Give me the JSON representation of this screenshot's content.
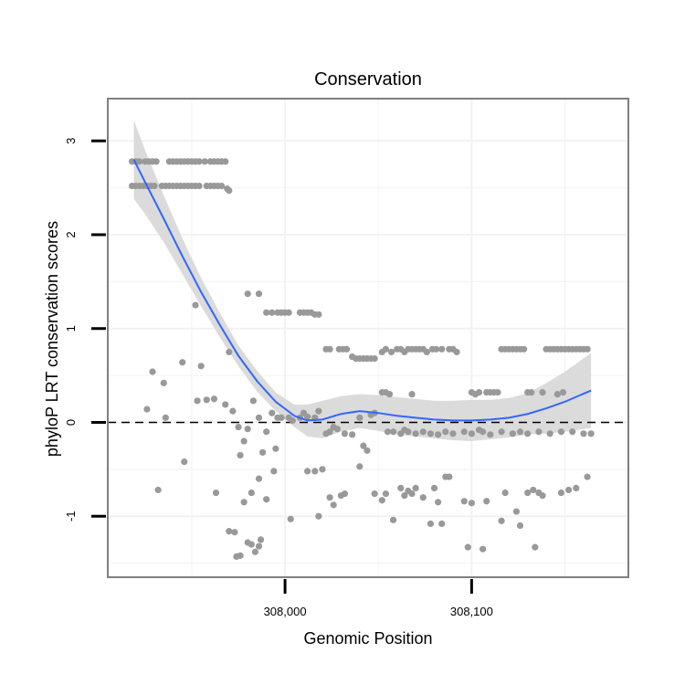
{
  "chart_data": {
    "type": "scatter",
    "title": "Conservation",
    "xlabel": "Genomic Position",
    "ylabel": "phyloP LRT conservation scores",
    "xlim": [
      307905,
      308184
    ],
    "ylim": [
      -1.65,
      3.45
    ],
    "xticks": [
      308000,
      308100
    ],
    "xtick_labels": [
      "308,000",
      "308,100"
    ],
    "yticks": [
      -1,
      0,
      1,
      2,
      3
    ],
    "ytick_labels": [
      "-1",
      "0",
      "1",
      "2",
      "3"
    ],
    "grid": true,
    "reference_line": {
      "y": 0,
      "style": "dashed"
    },
    "colors": {
      "points": "#999999",
      "smooth_line": "#3366ff",
      "confidence_band": "#d9d9d9",
      "panel_border": "#7f7f7f",
      "grid": "#f2f2f2"
    },
    "series": [
      {
        "type": "scatter",
        "points": [
          [
            307918,
            2.78
          ],
          [
            307920,
            2.78
          ],
          [
            307922,
            2.78
          ],
          [
            307925,
            2.78
          ],
          [
            307927,
            2.78
          ],
          [
            307929,
            2.78
          ],
          [
            307931,
            2.78
          ],
          [
            307938,
            2.78
          ],
          [
            307940,
            2.78
          ],
          [
            307942,
            2.78
          ],
          [
            307944,
            2.78
          ],
          [
            307946,
            2.78
          ],
          [
            307948,
            2.78
          ],
          [
            307950,
            2.78
          ],
          [
            307952,
            2.78
          ],
          [
            307954,
            2.78
          ],
          [
            307957,
            2.78
          ],
          [
            307960,
            2.78
          ],
          [
            307962,
            2.78
          ],
          [
            307964,
            2.78
          ],
          [
            307966,
            2.78
          ],
          [
            307968,
            2.78
          ],
          [
            307918,
            2.52
          ],
          [
            307920,
            2.52
          ],
          [
            307922,
            2.52
          ],
          [
            307924,
            2.52
          ],
          [
            307926,
            2.52
          ],
          [
            307928,
            2.52
          ],
          [
            307930,
            2.52
          ],
          [
            307934,
            2.52
          ],
          [
            307936,
            2.52
          ],
          [
            307938,
            2.52
          ],
          [
            307940,
            2.52
          ],
          [
            307942,
            2.52
          ],
          [
            307944,
            2.52
          ],
          [
            307946,
            2.52
          ],
          [
            307948,
            2.52
          ],
          [
            307950,
            2.52
          ],
          [
            307952,
            2.52
          ],
          [
            307954,
            2.52
          ],
          [
            307958,
            2.52
          ],
          [
            307960,
            2.52
          ],
          [
            307962,
            2.52
          ],
          [
            307964,
            2.52
          ],
          [
            307966,
            2.52
          ],
          [
            307969,
            2.49
          ],
          [
            307970,
            2.47
          ],
          [
            307980,
            1.37
          ],
          [
            307986,
            1.37
          ],
          [
            307990,
            1.17
          ],
          [
            307993,
            1.17
          ],
          [
            307996,
            1.17
          ],
          [
            307998,
            1.17
          ],
          [
            308000,
            1.17
          ],
          [
            308002,
            1.17
          ],
          [
            308008,
            1.17
          ],
          [
            308010,
            1.17
          ],
          [
            308012,
            1.17
          ],
          [
            308014,
            1.17
          ],
          [
            308016,
            1.15
          ],
          [
            308018,
            1.15
          ],
          [
            308022,
            0.78
          ],
          [
            308024,
            0.78
          ],
          [
            308029,
            0.78
          ],
          [
            308031,
            0.78
          ],
          [
            308033,
            0.78
          ],
          [
            308036,
            0.7
          ],
          [
            308038,
            0.68
          ],
          [
            308040,
            0.68
          ],
          [
            308042,
            0.68
          ],
          [
            308044,
            0.68
          ],
          [
            308046,
            0.68
          ],
          [
            308048,
            0.68
          ],
          [
            308052,
            0.75
          ],
          [
            308054,
            0.78
          ],
          [
            308057,
            0.75
          ],
          [
            308060,
            0.78
          ],
          [
            308062,
            0.78
          ],
          [
            308064,
            0.75
          ],
          [
            308066,
            0.78
          ],
          [
            308068,
            0.78
          ],
          [
            308070,
            0.78
          ],
          [
            308072,
            0.78
          ],
          [
            308074,
            0.78
          ],
          [
            308076,
            0.75
          ],
          [
            308079,
            0.78
          ],
          [
            308081,
            0.78
          ],
          [
            308084,
            0.78
          ],
          [
            308088,
            0.78
          ],
          [
            308090,
            0.78
          ],
          [
            308092,
            0.75
          ],
          [
            308100,
            0.32
          ],
          [
            308102,
            0.3
          ],
          [
            308104,
            0.32
          ],
          [
            308108,
            0.32
          ],
          [
            308110,
            0.32
          ],
          [
            308112,
            0.32
          ],
          [
            308114,
            0.32
          ],
          [
            308116,
            0.78
          ],
          [
            308118,
            0.78
          ],
          [
            308120,
            0.78
          ],
          [
            308122,
            0.78
          ],
          [
            308124,
            0.78
          ],
          [
            308126,
            0.78
          ],
          [
            308128,
            0.78
          ],
          [
            308130,
            0.32
          ],
          [
            308132,
            0.32
          ],
          [
            308138,
            0.32
          ],
          [
            308140,
            0.78
          ],
          [
            308142,
            0.78
          ],
          [
            308144,
            0.78
          ],
          [
            308146,
            0.78
          ],
          [
            308148,
            0.78
          ],
          [
            308150,
            0.78
          ],
          [
            308152,
            0.78
          ],
          [
            308154,
            0.78
          ],
          [
            308156,
            0.78
          ],
          [
            308158,
            0.78
          ],
          [
            308160,
            0.78
          ],
          [
            308162,
            0.78
          ],
          [
            308054,
            0.32
          ],
          [
            308056,
            0.3
          ],
          [
            308068,
            0.3
          ],
          [
            308146,
            0.3
          ],
          [
            308149,
            0.32
          ],
          [
            308052,
            0.32
          ],
          [
            308040,
            0.05
          ],
          [
            307926,
            0.14
          ],
          [
            307929,
            0.54
          ],
          [
            307935,
            0.42
          ],
          [
            307936,
            0.05
          ],
          [
            307945,
            0.64
          ],
          [
            307952,
            1.25
          ],
          [
            307955,
            0.6
          ],
          [
            307953,
            0.23
          ],
          [
            307958,
            0.24
          ],
          [
            307962,
            0.25
          ],
          [
            307968,
            0.19
          ],
          [
            307970,
            0.75
          ],
          [
            307972,
            0.12
          ],
          [
            307975,
            -0.05
          ],
          [
            307976,
            -0.35
          ],
          [
            307978,
            -0.2
          ],
          [
            307980,
            -0.07
          ],
          [
            307983,
            0.23
          ],
          [
            307986,
            0.05
          ],
          [
            307988,
            -0.32
          ],
          [
            307990,
            -0.1
          ],
          [
            307993,
            0.1
          ],
          [
            307995,
            -0.28
          ],
          [
            307996,
            0.05
          ],
          [
            307998,
            0.05
          ],
          [
            308002,
            0.05
          ],
          [
            308004,
            0.02
          ],
          [
            308008,
            0.05
          ],
          [
            308010,
            0.1
          ],
          [
            308012,
            0.06
          ],
          [
            308016,
            0.05
          ],
          [
            308018,
            0.12
          ],
          [
            308022,
            -0.12
          ],
          [
            308024,
            -0.1
          ],
          [
            308026,
            -0.05
          ],
          [
            308028,
            -0.07
          ],
          [
            308032,
            -0.12
          ],
          [
            308036,
            -0.13
          ],
          [
            308042,
            -0.25
          ],
          [
            308044,
            -0.3
          ],
          [
            308046,
            0.08
          ],
          [
            308048,
            0.1
          ],
          [
            308055,
            -0.1
          ],
          [
            308058,
            -0.1
          ],
          [
            308062,
            -0.12
          ],
          [
            308064,
            -0.08
          ],
          [
            308066,
            -0.1
          ],
          [
            308070,
            -0.12
          ],
          [
            308074,
            -0.1
          ],
          [
            308078,
            -0.12
          ],
          [
            308082,
            -0.13
          ],
          [
            308086,
            -0.1
          ],
          [
            308090,
            -0.12
          ],
          [
            308096,
            -0.1
          ],
          [
            308100,
            -0.12
          ],
          [
            308104,
            -0.08
          ],
          [
            308106,
            -0.1
          ],
          [
            308110,
            -0.13
          ],
          [
            308116,
            -0.1
          ],
          [
            308122,
            -0.12
          ],
          [
            308126,
            -0.1
          ],
          [
            308130,
            -0.12
          ],
          [
            308136,
            -0.1
          ],
          [
            308142,
            -0.12
          ],
          [
            308148,
            -0.1
          ],
          [
            308154,
            -0.1
          ],
          [
            308160,
            -0.12
          ],
          [
            308164,
            -0.12
          ],
          [
            307932,
            -0.72
          ],
          [
            307946,
            -0.42
          ],
          [
            307963,
            -0.75
          ],
          [
            307970,
            -1.16
          ],
          [
            307973,
            -1.17
          ],
          [
            307974,
            -1.43
          ],
          [
            307976,
            -1.42
          ],
          [
            307980,
            -1.28
          ],
          [
            307982,
            -1.3
          ],
          [
            307984,
            -1.38
          ],
          [
            307986,
            -1.32
          ],
          [
            307987,
            -1.25
          ],
          [
            307978,
            -0.85
          ],
          [
            307982,
            -0.75
          ],
          [
            307986,
            -0.6
          ],
          [
            307990,
            -0.82
          ],
          [
            307994,
            -0.52
          ],
          [
            308003,
            -1.03
          ],
          [
            308012,
            -0.52
          ],
          [
            308016,
            -0.52
          ],
          [
            308020,
            -0.5
          ],
          [
            308018,
            -1.0
          ],
          [
            308024,
            -0.8
          ],
          [
            308026,
            -0.88
          ],
          [
            308030,
            -0.78
          ],
          [
            308032,
            -0.76
          ],
          [
            308040,
            -0.47
          ],
          [
            308048,
            -0.76
          ],
          [
            308052,
            -0.83
          ],
          [
            308054,
            -0.76
          ],
          [
            308058,
            -1.04
          ],
          [
            308062,
            -0.7
          ],
          [
            308064,
            -0.78
          ],
          [
            308066,
            -0.73
          ],
          [
            308068,
            -0.76
          ],
          [
            308070,
            -0.7
          ],
          [
            308074,
            -0.8
          ],
          [
            308078,
            -1.08
          ],
          [
            308080,
            -0.7
          ],
          [
            308082,
            -0.85
          ],
          [
            308084,
            -1.08
          ],
          [
            308086,
            -0.58
          ],
          [
            308088,
            -0.58
          ],
          [
            308096,
            -0.84
          ],
          [
            308098,
            -1.33
          ],
          [
            308100,
            -0.86
          ],
          [
            308106,
            -1.35
          ],
          [
            308108,
            -0.84
          ],
          [
            308116,
            -1.05
          ],
          [
            308118,
            -0.75
          ],
          [
            308124,
            -0.95
          ],
          [
            308126,
            -1.1
          ],
          [
            308130,
            -0.75
          ],
          [
            308133,
            -0.72
          ],
          [
            308134,
            -1.33
          ],
          [
            308136,
            -0.75
          ],
          [
            308138,
            -0.78
          ],
          [
            308148,
            -0.75
          ],
          [
            308152,
            -0.72
          ],
          [
            308156,
            -0.7
          ],
          [
            308162,
            -0.58
          ]
        ]
      },
      {
        "type": "smooth",
        "x": [
          307919,
          307925,
          307935,
          307945,
          307955,
          307965,
          307975,
          307985,
          307995,
          308005,
          308012,
          308020,
          308030,
          308040,
          308050,
          308060,
          308070,
          308080,
          308090,
          308100,
          308110,
          308120,
          308130,
          308140,
          308150,
          308164
        ],
        "y": [
          2.8,
          2.56,
          2.17,
          1.77,
          1.39,
          1.04,
          0.71,
          0.44,
          0.22,
          0.07,
          0.02,
          0.03,
          0.09,
          0.12,
          0.1,
          0.07,
          0.05,
          0.03,
          0.02,
          0.02,
          0.03,
          0.05,
          0.09,
          0.15,
          0.22,
          0.34
        ],
        "lower": [
          2.38,
          2.22,
          1.92,
          1.58,
          1.24,
          0.91,
          0.6,
          0.33,
          0.12,
          -0.05,
          -0.15,
          -0.17,
          -0.1,
          -0.06,
          -0.09,
          -0.13,
          -0.15,
          -0.17,
          -0.19,
          -0.2,
          -0.18,
          -0.16,
          -0.13,
          -0.12,
          -0.1,
          -0.06
        ],
        "upper": [
          3.22,
          2.9,
          2.42,
          1.96,
          1.54,
          1.17,
          0.82,
          0.55,
          0.32,
          0.19,
          0.19,
          0.23,
          0.28,
          0.3,
          0.29,
          0.27,
          0.25,
          0.23,
          0.23,
          0.24,
          0.24,
          0.26,
          0.31,
          0.42,
          0.54,
          0.74
        ]
      }
    ]
  }
}
